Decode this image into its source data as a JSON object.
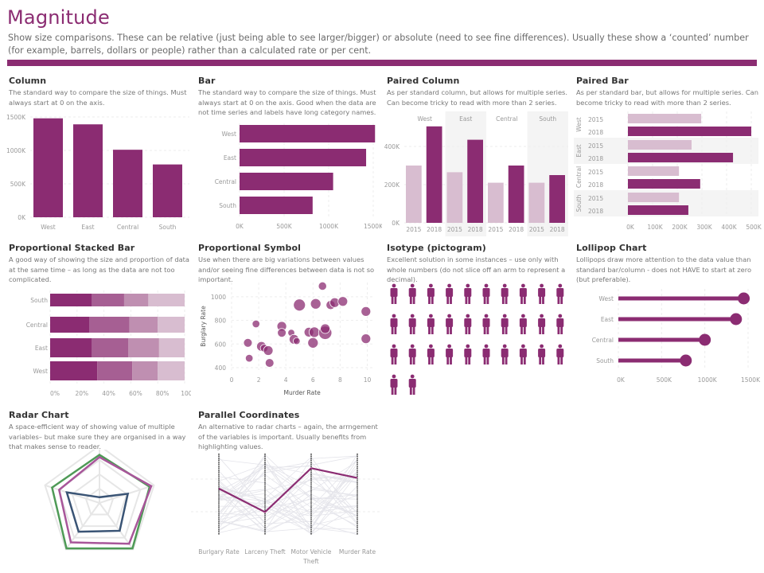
{
  "page": {
    "title": "Magnitude",
    "subtitle": "Show size comparisons. These can be relative (just being able to see larger/bigger) or absolute (need to see fine differences). Usually these show a ‘counted’ number (for example, barrels, dollars or people) rather than a calculated rate or per cent.",
    "accent_color": "#8b2c72",
    "light_color": "#d8bdd0"
  },
  "panels": {
    "column": {
      "title": "Column",
      "desc": "The standard way to compare the size of things. Must always start at 0 on the axis."
    },
    "bar": {
      "title": "Bar",
      "desc": "The standard way to compare the size of things. Must always start at 0 on the axis. Good when the data are not time series and labels have long category names."
    },
    "paired_column": {
      "title": "Paired Column",
      "desc": "As per standard column, but allows for multiple series. Can become tricky to read with more than 2 series."
    },
    "paired_bar": {
      "title": "Paired Bar",
      "desc": "As per standard bar, but allows for multiple series. Can become tricky to read with more than 2 series."
    },
    "prop_stacked": {
      "title": "Proportional Stacked Bar",
      "desc": "A good way of showing the size and proportion of data at the same time – as long as the data are not too complicated."
    },
    "prop_symbol": {
      "title": "Proportional Symbol",
      "desc": "Use when there are big variations between values and/or seeing fine differences between data is not so important."
    },
    "isotype": {
      "title": "Isotype (pictogram)",
      "desc": "Excellent solution in some instances – use only with whole numbers (do not slice off an arm to represent a decimal)."
    },
    "lollipop": {
      "title": "Lollipop Chart",
      "desc": "Lollipops draw more attention to the data value than standard bar/column - does not HAVE to start at zero (but preferable)."
    },
    "radar": {
      "title": "Radar Chart",
      "desc": "A space-efficient way of showing value of multiple variables– but make sure they are organised in a way that makes sense to reader."
    },
    "parallel": {
      "title": "Parallel Coordinates",
      "desc": "An alternative to radar charts – again, the arrngement of the variables is important. Usually benefits from highlighting values."
    }
  },
  "chart_data": [
    {
      "id": "column",
      "type": "bar",
      "orientation": "vertical",
      "categories": [
        "West",
        "East",
        "Central",
        "South"
      ],
      "values": [
        1480000,
        1390000,
        1010000,
        790000
      ],
      "ylim": [
        0,
        1500000
      ],
      "yticks": [
        "0K",
        "500K",
        "1000K",
        "1500K"
      ],
      "ytick_values": [
        0,
        500000,
        1000000,
        1500000
      ],
      "grid": true
    },
    {
      "id": "bar",
      "type": "bar",
      "orientation": "horizontal",
      "categories": [
        "West",
        "East",
        "Central",
        "South"
      ],
      "values": [
        1520000,
        1420000,
        1050000,
        820000
      ],
      "xlim": [
        0,
        1500000
      ],
      "xticks": [
        "0K",
        "500K",
        "1000K",
        "1500K"
      ],
      "xtick_values": [
        0,
        500000,
        1000000,
        1500000
      ]
    },
    {
      "id": "paired_column",
      "type": "bar",
      "orientation": "vertical",
      "categories": [
        "West",
        "East",
        "Central",
        "South"
      ],
      "series": [
        {
          "name": "2015",
          "values": [
            300000,
            265000,
            210000,
            210000
          ]
        },
        {
          "name": "2018",
          "values": [
            505000,
            435000,
            300000,
            250000
          ]
        }
      ],
      "ylim": [
        0,
        500000
      ],
      "yticks": [
        "0K",
        "200K",
        "400K"
      ],
      "ytick_values": [
        0,
        200000,
        400000
      ]
    },
    {
      "id": "paired_bar",
      "type": "bar",
      "orientation": "horizontal",
      "categories": [
        "West",
        "East",
        "Central",
        "South"
      ],
      "series": [
        {
          "name": "2015",
          "values": [
            297000,
            258000,
            207000,
            207000
          ]
        },
        {
          "name": "2018",
          "values": [
            500000,
            426000,
            293000,
            245000
          ]
        }
      ],
      "xlim": [
        0,
        500000
      ],
      "xticks": [
        "0K",
        "100K",
        "200K",
        "300K",
        "400K",
        "500K"
      ],
      "xtick_values": [
        0,
        100000,
        200000,
        300000,
        400000,
        500000
      ]
    },
    {
      "id": "prop_stacked",
      "type": "bar",
      "orientation": "horizontal",
      "stacked": true,
      "categories": [
        "South",
        "Central",
        "East",
        "West"
      ],
      "segments": [
        [
          31,
          24,
          18,
          27
        ],
        [
          29,
          30,
          21,
          20
        ],
        [
          31,
          27,
          23,
          19
        ],
        [
          35,
          26,
          19,
          20
        ]
      ],
      "xlim": [
        0,
        100
      ],
      "xticks": [
        "0%",
        "20%",
        "40%",
        "60%",
        "80%",
        "100%"
      ],
      "xtick_values": [
        0,
        20,
        40,
        60,
        80,
        100
      ]
    },
    {
      "id": "prop_symbol",
      "type": "scatter",
      "xlabel": "Murder Rate",
      "ylabel": "Burglary Rate",
      "xlim": [
        0,
        10.5
      ],
      "ylim": [
        380,
        1120
      ],
      "xticks": [
        "0",
        "2",
        "4",
        "6",
        "8",
        "10"
      ],
      "xtick_values": [
        0,
        2,
        4,
        6,
        8,
        10
      ],
      "yticks": [
        "400",
        "600",
        "800",
        "1000"
      ],
      "ytick_values": [
        400,
        600,
        800,
        1000
      ],
      "points": [
        {
          "x": 1.2,
          "y": 610,
          "s": 2
        },
        {
          "x": 1.3,
          "y": 480,
          "s": 1.5
        },
        {
          "x": 1.8,
          "y": 770,
          "s": 1.5
        },
        {
          "x": 2.2,
          "y": 580,
          "s": 2.5
        },
        {
          "x": 2.4,
          "y": 565,
          "s": 1.5
        },
        {
          "x": 2.7,
          "y": 545,
          "s": 2.5
        },
        {
          "x": 2.8,
          "y": 440,
          "s": 2
        },
        {
          "x": 3.7,
          "y": 750,
          "s": 2.5
        },
        {
          "x": 3.7,
          "y": 695,
          "s": 2
        },
        {
          "x": 4.4,
          "y": 695,
          "s": 1.2
        },
        {
          "x": 4.6,
          "y": 640,
          "s": 2.5
        },
        {
          "x": 4.8,
          "y": 625,
          "s": 1.2
        },
        {
          "x": 5.0,
          "y": 930,
          "s": 4
        },
        {
          "x": 5.7,
          "y": 700,
          "s": 2.5
        },
        {
          "x": 6.0,
          "y": 610,
          "s": 3
        },
        {
          "x": 6.1,
          "y": 700,
          "s": 3
        },
        {
          "x": 6.2,
          "y": 940,
          "s": 3
        },
        {
          "x": 6.7,
          "y": 1090,
          "s": 1.8
        },
        {
          "x": 6.9,
          "y": 695,
          "s": 5
        },
        {
          "x": 6.9,
          "y": 730,
          "s": 2.5
        },
        {
          "x": 7.3,
          "y": 930,
          "s": 2.2
        },
        {
          "x": 7.6,
          "y": 950,
          "s": 2.5
        },
        {
          "x": 8.2,
          "y": 960,
          "s": 2.5
        },
        {
          "x": 9.9,
          "y": 875,
          "s": 2.5
        },
        {
          "x": 9.9,
          "y": 645,
          "s": 2.5
        }
      ]
    },
    {
      "id": "isotype",
      "type": "table",
      "count": 32,
      "per_row": 10,
      "icon": "person-icon"
    },
    {
      "id": "lollipop",
      "type": "bar",
      "orientation": "horizontal",
      "style": "lollipop",
      "categories": [
        "West",
        "East",
        "Central",
        "South"
      ],
      "values": [
        1450000,
        1360000,
        1000000,
        780000
      ],
      "xlim": [
        0,
        1500000
      ],
      "xticks": [
        "0K",
        "500K",
        "1000K",
        "1500K"
      ],
      "xtick_values": [
        0,
        500000,
        1000000,
        1500000
      ]
    },
    {
      "id": "radar",
      "type": "line",
      "style": "radar",
      "axes": 5,
      "levels": 4,
      "series": [
        {
          "name": "series-green",
          "color": "#4e9a56",
          "values": [
            0.84,
            0.92,
            0.98,
            0.98,
            0.87
          ]
        },
        {
          "name": "series-magenta",
          "color": "#a8569a",
          "values": [
            0.8,
            0.95,
            0.88,
            0.85,
            0.74
          ]
        },
        {
          "name": "series-navy",
          "color": "#3a5475",
          "values": [
            0.1,
            0.52,
            0.6,
            0.62,
            0.6
          ]
        }
      ]
    },
    {
      "id": "parallel",
      "type": "line",
      "style": "parallel-coordinates",
      "axes": [
        "Burlgary Rate",
        "Larceny Theft",
        "Motor Vehicle Theft",
        "Murder Rate"
      ],
      "highlight": {
        "color": "#8b2c72",
        "values": [
          0.57,
          0.28,
          0.82,
          0.7
        ]
      },
      "background_lines": 40
    }
  ]
}
